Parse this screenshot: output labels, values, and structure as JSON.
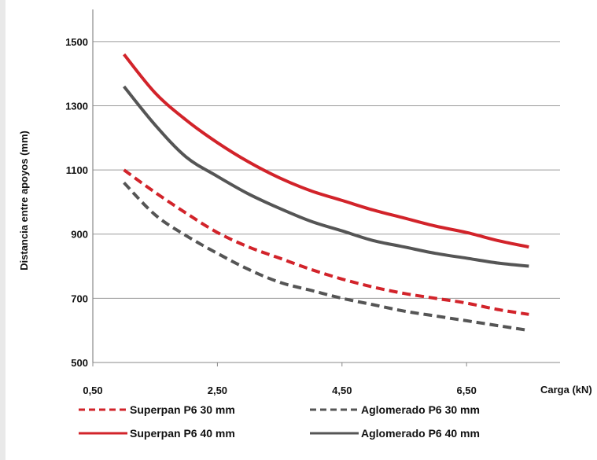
{
  "chart_data": {
    "type": "line",
    "title": "",
    "xlabel": "Carga (kN)",
    "ylabel": "Distancia entre apoyos (mm)",
    "xlim": [
      0.5,
      8.0
    ],
    "ylim": [
      500,
      1600
    ],
    "x_ticks": [
      "0,50",
      "2,50",
      "4,50",
      "6,50"
    ],
    "y_ticks": [
      "500",
      "700",
      "900",
      "1100",
      "1300",
      "1500"
    ],
    "grid": "horizontal",
    "legend_position": "bottom",
    "series": [
      {
        "name": "Superpan P6 30 mm",
        "color": "#d2232a",
        "line_style": "dashed",
        "x": [
          1.0,
          1.5,
          2.0,
          2.5,
          3.0,
          3.5,
          4.0,
          4.5,
          5.0,
          5.5,
          6.0,
          6.5,
          7.0,
          7.5
        ],
        "y": [
          1100,
          1030,
          965,
          905,
          860,
          825,
          790,
          760,
          735,
          715,
          700,
          685,
          665,
          650
        ]
      },
      {
        "name": "Aglomerado P6 30 mm",
        "color": "#555555",
        "line_style": "dashed",
        "x": [
          1.0,
          1.5,
          2.0,
          2.5,
          3.0,
          3.5,
          4.0,
          4.5,
          5.0,
          5.5,
          6.0,
          6.5,
          7.0,
          7.5
        ],
        "y": [
          1060,
          960,
          895,
          840,
          790,
          750,
          725,
          700,
          680,
          660,
          645,
          630,
          615,
          600
        ]
      },
      {
        "name": "Superpan P6 40 mm",
        "color": "#d2232a",
        "line_style": "solid",
        "x": [
          1.0,
          1.5,
          2.0,
          2.5,
          3.0,
          3.5,
          4.0,
          4.5,
          5.0,
          5.5,
          6.0,
          6.5,
          7.0,
          7.5
        ],
        "y": [
          1460,
          1340,
          1255,
          1185,
          1125,
          1075,
          1035,
          1005,
          975,
          950,
          925,
          905,
          880,
          860
        ]
      },
      {
        "name": "Aglomerado P6 40 mm",
        "color": "#555555",
        "line_style": "solid",
        "x": [
          1.0,
          1.5,
          2.0,
          2.5,
          3.0,
          3.5,
          4.0,
          4.5,
          5.0,
          5.5,
          6.0,
          6.5,
          7.0,
          7.5
        ],
        "y": [
          1360,
          1240,
          1140,
          1080,
          1025,
          980,
          940,
          910,
          880,
          860,
          840,
          825,
          810,
          800
        ]
      }
    ]
  }
}
